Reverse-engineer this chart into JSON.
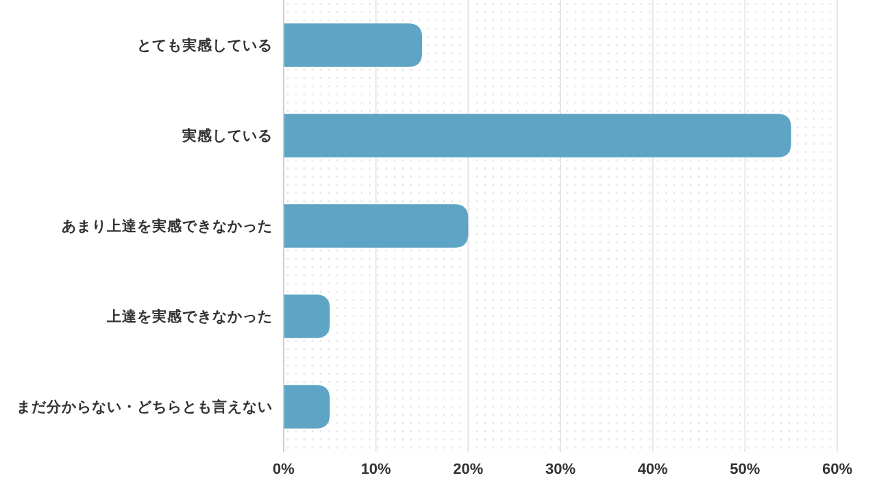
{
  "chart_data": {
    "type": "bar",
    "orientation": "horizontal",
    "categories": [
      "とても実感している",
      "実感している",
      "あまり上達を実感できなかった",
      "上達を実感できなかった",
      "まだ分からない・どちらとも言えない"
    ],
    "values": [
      15,
      55,
      20,
      5,
      5
    ],
    "color": "#5ea4c4",
    "xlim": [
      0,
      60
    ],
    "xticks": [
      {
        "value": 0,
        "label": "0%"
      },
      {
        "value": 10,
        "label": "10%"
      },
      {
        "value": 20,
        "label": "20%"
      },
      {
        "value": 30,
        "label": "30%"
      },
      {
        "value": 40,
        "label": "40%"
      },
      {
        "value": 50,
        "label": "50%"
      },
      {
        "value": 60,
        "label": "60%"
      }
    ],
    "grid": "x"
  }
}
